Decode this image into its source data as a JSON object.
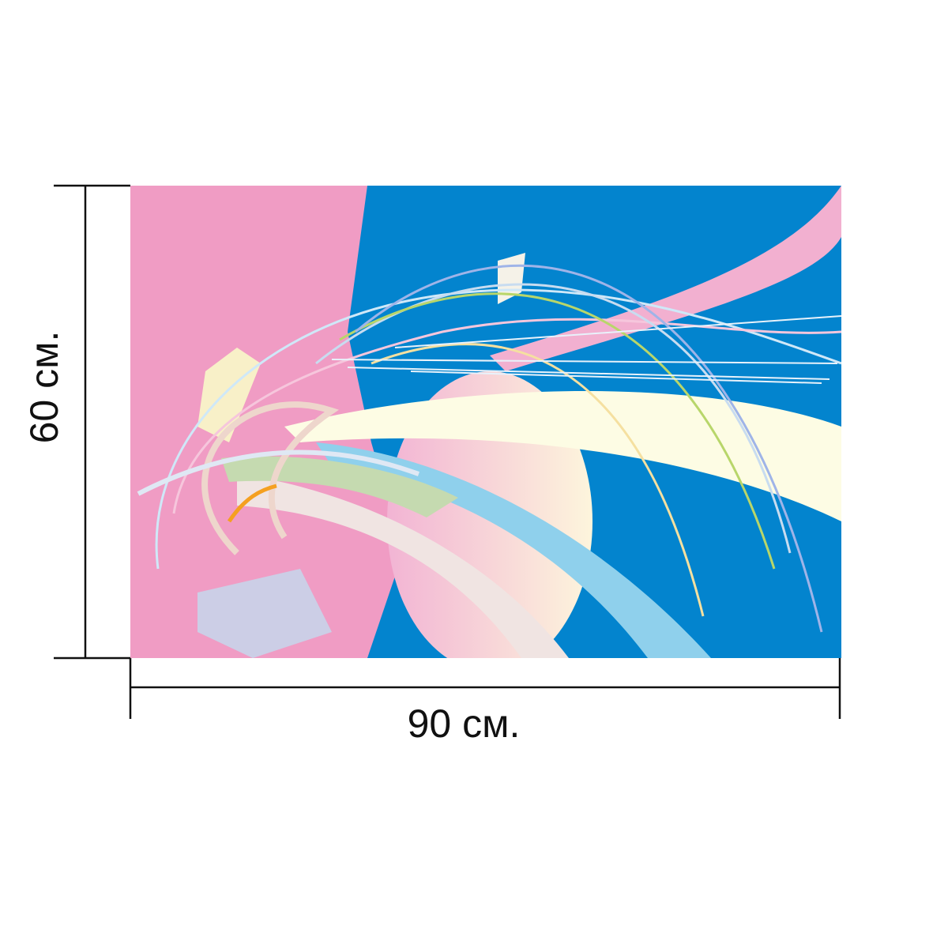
{
  "dimensions": {
    "height": "60 см.",
    "width": "90 см."
  }
}
